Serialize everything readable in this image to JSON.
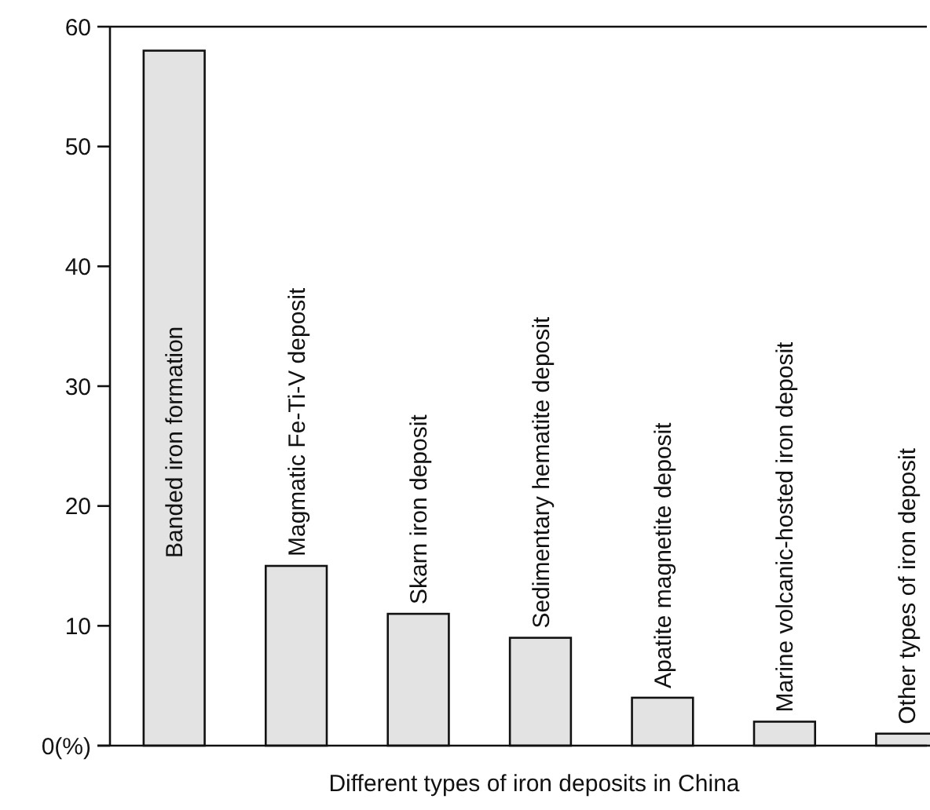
{
  "chart_data": {
    "type": "bar",
    "xlabel": "Different types of iron deposits in China",
    "categories": [
      "Banded iron formation",
      "Magmatic Fe-Ti-V deposit",
      "Skarn iron deposit",
      "Sedimentary hematite deposit",
      "Apatite magnetite deposit",
      "Marine volcanic-hosted iron deposit",
      "Other types of iron deposit"
    ],
    "values": [
      58,
      15,
      11,
      9,
      4,
      2,
      1
    ],
    "color": "#e3e3e3",
    "ylim": [
      0,
      60
    ],
    "yticks": [
      {
        "value": 0,
        "label": "0(%)"
      },
      10,
      20,
      30,
      40,
      50,
      60
    ],
    "grid": false
  }
}
